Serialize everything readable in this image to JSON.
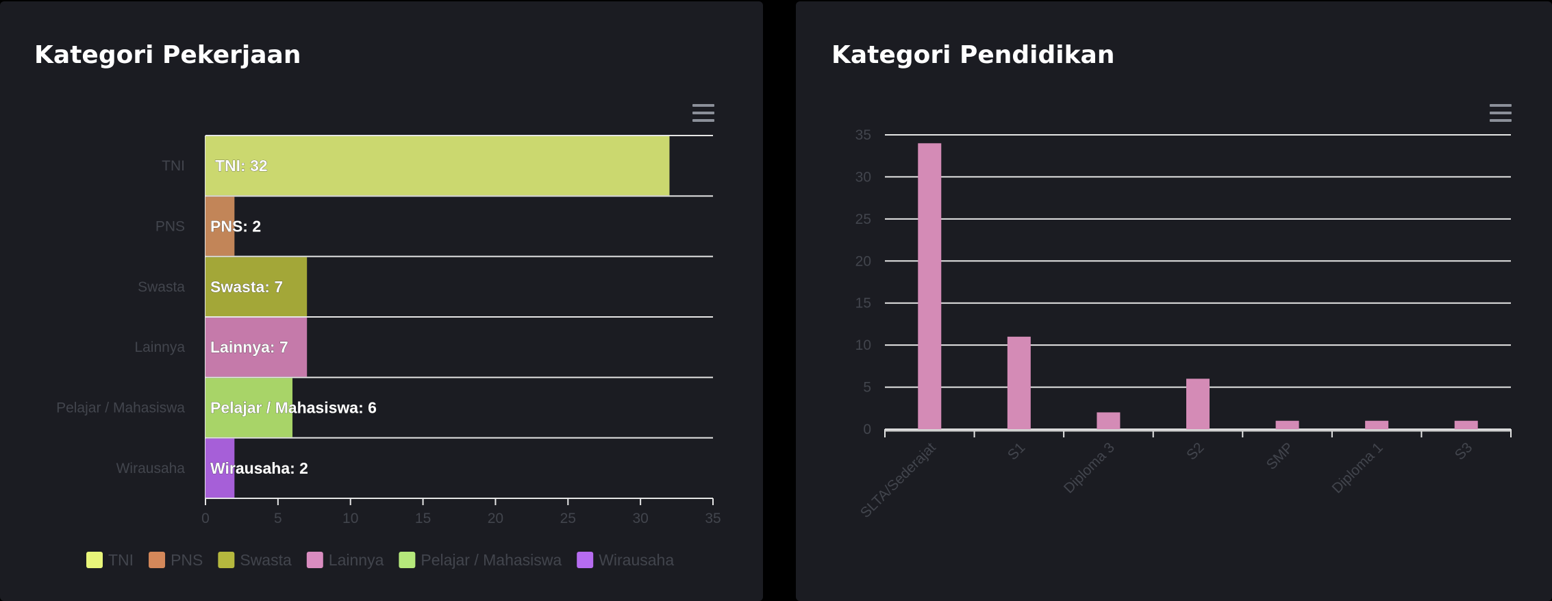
{
  "cards": {
    "left": {
      "title": "Kategori Pekerjaan"
    },
    "right": {
      "title": "Kategori Pendidikan"
    }
  },
  "colors": {
    "card_bg": "#1b1c22",
    "grid": "#e6e6e6",
    "axis_text": "#42454d",
    "title": "#ffffff"
  },
  "chart_data": [
    {
      "type": "bar",
      "orientation": "horizontal",
      "title": "Kategori Pekerjaan",
      "categories": [
        "TNI",
        "PNS",
        "Swasta",
        "Lainnya",
        "Pelajar / Mahasiswa",
        "Wirausaha"
      ],
      "values": [
        32,
        2,
        7,
        7,
        6,
        2
      ],
      "data_labels": [
        "TNI: 32",
        "PNS: 2",
        "Swasta: 7",
        "Lainnya: 7",
        "Pelajar / Mahasiswa: 6",
        "Wirausaha: 2"
      ],
      "colors": [
        "#cbd86f",
        "#c28558",
        "#a3a738",
        "#c57aaa",
        "#a8d468",
        "#a65fd8"
      ],
      "legend_colors": [
        "#e8f57a",
        "#d4885a",
        "#b5b83e",
        "#d98cc0",
        "#b5e87b",
        "#b66cf0"
      ],
      "xlim": [
        0,
        35
      ],
      "xticks": [
        0,
        5,
        10,
        15,
        20,
        25,
        30,
        35
      ],
      "legend": {
        "position": "bottom",
        "items": [
          "TNI",
          "PNS",
          "Swasta",
          "Lainnya",
          "Pelajar / Mahasiswa",
          "Wirausaha"
        ]
      },
      "grid": true
    },
    {
      "type": "bar",
      "title": "Kategori Pendidikan",
      "categories": [
        "SLTA/Sederajat",
        "S1",
        "Diploma 3",
        "S2",
        "SMP",
        "Diploma 1",
        "S3"
      ],
      "values": [
        34,
        11,
        2,
        6,
        1,
        1,
        1
      ],
      "color": "#d48bb6",
      "ylim": [
        0,
        35
      ],
      "yticks": [
        0,
        5,
        10,
        15,
        20,
        25,
        30,
        35
      ],
      "grid": true
    }
  ]
}
